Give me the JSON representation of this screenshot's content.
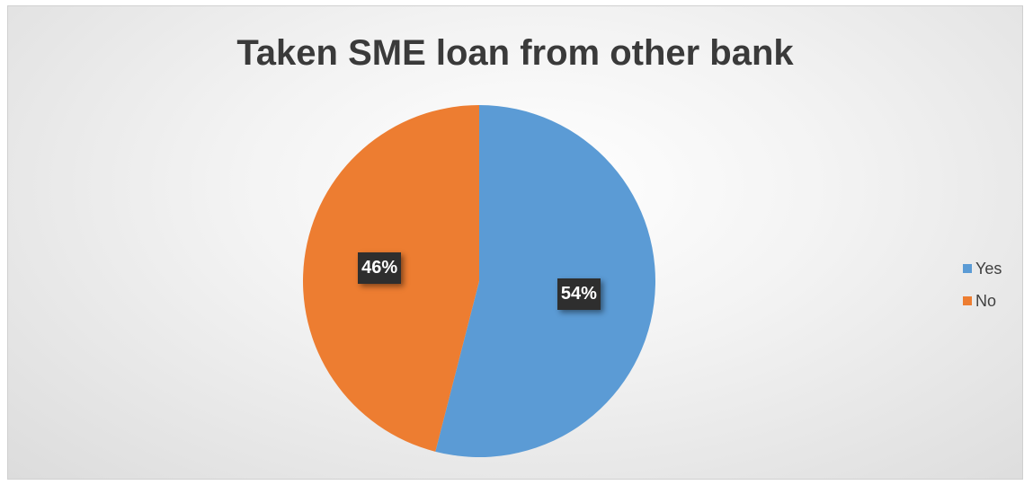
{
  "chart_data": {
    "type": "pie",
    "title": "Taken SME loan from other bank",
    "categories": [
      "Yes",
      "No"
    ],
    "values": [
      54,
      46
    ],
    "labels": [
      "54%",
      "46%"
    ],
    "colors": [
      "#5B9BD5",
      "#ED7D31"
    ],
    "legend_position": "right"
  }
}
